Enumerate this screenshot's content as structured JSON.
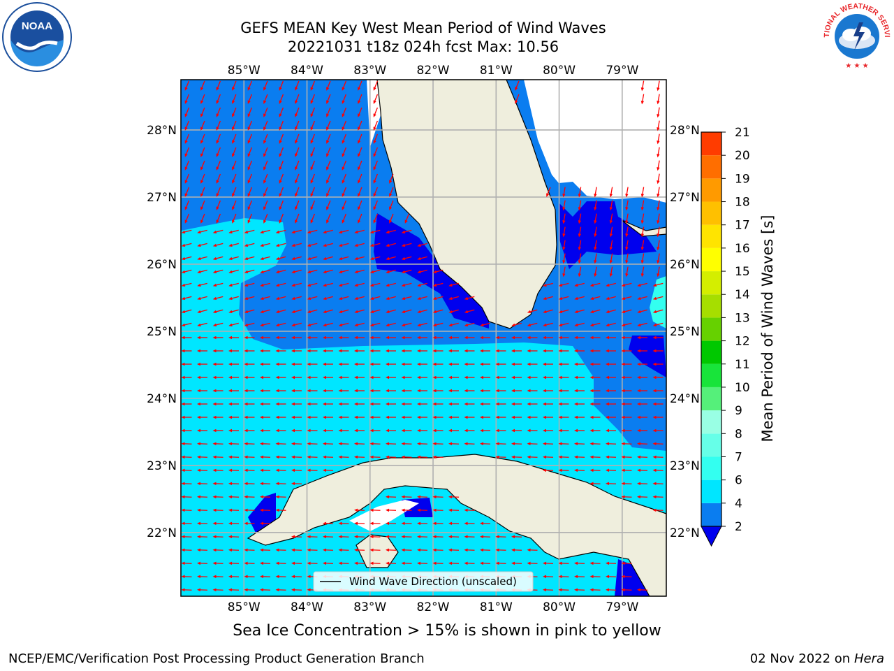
{
  "header": {
    "title_line1": "GEFS MEAN Key West Mean Period of Wind Waves",
    "title_line2": "20221031 t18z 024h fcst   Max: 10.56"
  },
  "logos": {
    "left": "NOAA",
    "right": "NATIONAL WEATHER SERVICE"
  },
  "map": {
    "lon_labels": [
      "85°W",
      "84°W",
      "83°W",
      "82°W",
      "81°W",
      "80°W",
      "79°W"
    ],
    "lat_labels": [
      "28°N",
      "27°N",
      "26°N",
      "25°N",
      "24°N",
      "23°N",
      "22°N"
    ],
    "lon_range": [
      -86.0,
      -78.3
    ],
    "lat_range": [
      21.05,
      28.75
    ],
    "legend_label": "Wind Wave Direction (unscaled)",
    "land_color": "#efeedd",
    "arrow_color": "#ff0000",
    "grid_color": "#b0b0b0"
  },
  "colorbar": {
    "label": "Mean Period of Wind Waves [s]",
    "ticks": [
      "2",
      "4",
      "6",
      "7",
      "8",
      "9",
      "10",
      "11",
      "12",
      "13",
      "14",
      "15",
      "16",
      "17",
      "18",
      "19",
      "20",
      "21"
    ],
    "colors": [
      "#0a7df0",
      "#00e6ff",
      "#33fff0",
      "#66ffe8",
      "#99ffe4",
      "#55f07a",
      "#18e43a",
      "#00c800",
      "#66d100",
      "#a6de00",
      "#d4ee00",
      "#ffff00",
      "#ffe400",
      "#ffc000",
      "#ff9a00",
      "#ff6e00",
      "#ff3c00",
      "#ff0000"
    ],
    "underflow_color": "#0000ee"
  },
  "notes": {
    "ice": "Sea Ice Concentration > 15% is shown in pink to yellow"
  },
  "footer": {
    "left": "NCEP/EMC/Verification Post Processing Product Generation Branch",
    "date": "02 Nov 2022 on",
    "machine": "Hera"
  }
}
